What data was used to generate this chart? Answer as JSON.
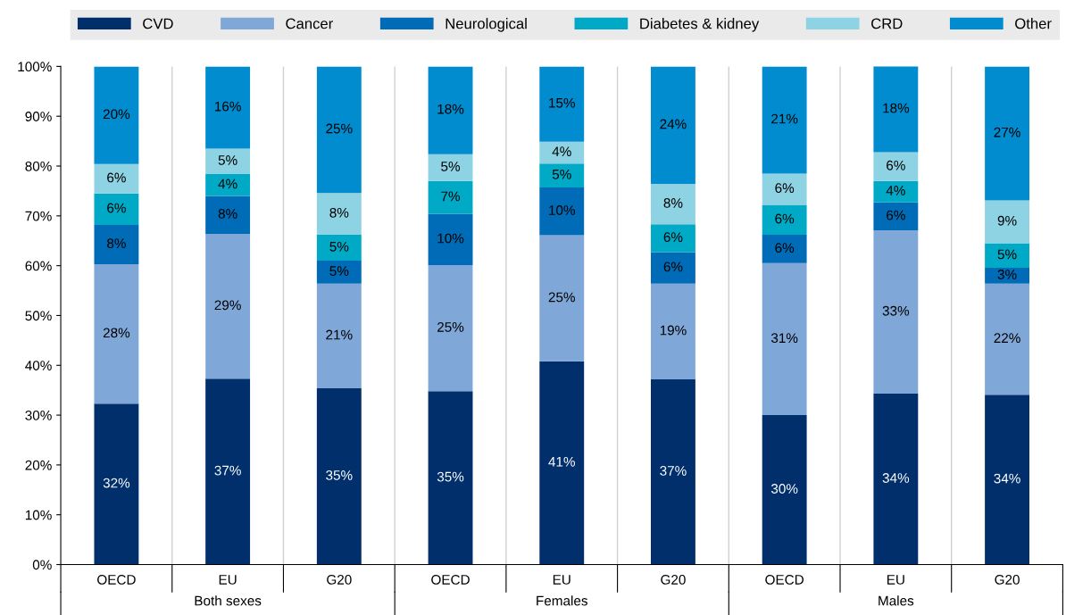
{
  "chart_data": {
    "type": "bar",
    "stacked": true,
    "categories": [
      "OECD",
      "EU",
      "G20",
      "OECD",
      "EU",
      "G20",
      "OECD",
      "EU",
      "G20"
    ],
    "series": [
      {
        "name": "CVD",
        "color": "#002f6c",
        "values": [
          32.3,
          37.3,
          35.4,
          34.8,
          40.8,
          37.2,
          30.0,
          34.3,
          34.1
        ],
        "value_labels": [
          "32%",
          "37%",
          "35%",
          "35%",
          "41%",
          "37%",
          "30%",
          "34%",
          "34%"
        ]
      },
      {
        "name": "Cancer",
        "color": "#7fa8d9",
        "values": [
          28.0,
          29.1,
          21.0,
          25.3,
          25.3,
          19.2,
          30.5,
          32.8,
          22.3
        ],
        "value_labels": [
          "28%",
          "29%",
          "21%",
          "25%",
          "25%",
          "19%",
          "31%",
          "33%",
          "22%"
        ]
      },
      {
        "name": "Neurological",
        "color": "#006bb6",
        "values": [
          7.9,
          7.6,
          4.6,
          10.3,
          9.6,
          6.3,
          5.7,
          5.6,
          3.2
        ],
        "value_labels": [
          "8%",
          "8%",
          "5%",
          "10%",
          "10%",
          "6%",
          "6%",
          "6%",
          "3%"
        ]
      },
      {
        "name": "Diabetes & kidney",
        "color": "#00aac7",
        "values": [
          6.3,
          4.4,
          5.2,
          6.6,
          4.8,
          5.6,
          6.0,
          4.3,
          4.9
        ],
        "value_labels": [
          "6%",
          "4%",
          "5%",
          "7%",
          "5%",
          "6%",
          "6%",
          "4%",
          "5%"
        ]
      },
      {
        "name": "CRD",
        "color": "#8ed3e4",
        "values": [
          5.9,
          5.1,
          8.4,
          5.4,
          4.4,
          8.1,
          6.3,
          5.8,
          8.6
        ],
        "value_labels": [
          "6%",
          "5%",
          "8%",
          "5%",
          "4%",
          "8%",
          "6%",
          "6%",
          "9%"
        ]
      },
      {
        "name": "Other",
        "color": "#008ccf",
        "values": [
          19.6,
          16.5,
          25.4,
          17.6,
          15.1,
          23.6,
          21.5,
          17.5,
          26.9
        ],
        "value_labels": [
          "20%",
          "16%",
          "25%",
          "18%",
          "15%",
          "24%",
          "21%",
          "18%",
          "27%"
        ]
      }
    ],
    "ylim": [
      0,
      100
    ],
    "yticks": [
      {
        "value": 0,
        "label": "0%"
      },
      {
        "value": 10,
        "label": "10%"
      },
      {
        "value": 20,
        "label": "20%"
      },
      {
        "value": 30,
        "label": "30%"
      },
      {
        "value": 40,
        "label": "40%"
      },
      {
        "value": 50,
        "label": "50%"
      },
      {
        "value": 60,
        "label": "60%"
      },
      {
        "value": 70,
        "label": "70%"
      },
      {
        "value": 80,
        "label": "80%"
      },
      {
        "value": 90,
        "label": "90%"
      },
      {
        "value": 100,
        "label": "100%"
      }
    ],
    "annotations": [
      "Both sexes",
      "Females",
      "Males"
    ],
    "grid": "x",
    "legend": "top"
  }
}
